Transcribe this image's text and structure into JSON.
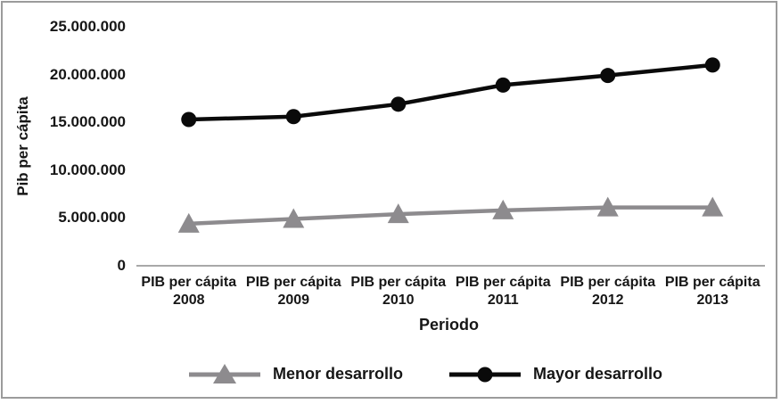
{
  "chart_data": {
    "type": "line",
    "title": "",
    "ylabel": "Pib per cápita",
    "xlabel": "Periodo",
    "ylim": [
      0,
      25000000
    ],
    "grid": false,
    "legend_position": "bottom-center",
    "x_categories": [
      {
        "line1": "PIB per cápita",
        "line2": "2008"
      },
      {
        "line1": "PIB per cápita",
        "line2": "2009"
      },
      {
        "line1": "PIB per cápita",
        "line2": "2010"
      },
      {
        "line1": "PIB per cápita",
        "line2": "2011"
      },
      {
        "line1": "PIB per cápita",
        "line2": "2012"
      },
      {
        "line1": "PIB per cápita",
        "line2": "2013"
      }
    ],
    "yticks": [
      {
        "value": 0,
        "label": "0"
      },
      {
        "value": 5000000,
        "label": "5.000.000"
      },
      {
        "value": 10000000,
        "label": "10.000.000"
      },
      {
        "value": 15000000,
        "label": "15.000.000"
      },
      {
        "value": 20000000,
        "label": "20.000.000"
      },
      {
        "value": 25000000,
        "label": "25.000.000"
      }
    ],
    "series": [
      {
        "name": "Menor desarrollo",
        "marker": "triangle",
        "color": "#8d8b8e",
        "values": [
          4400000,
          4900000,
          5400000,
          5800000,
          6100000,
          6100000
        ]
      },
      {
        "name": "Mayor desarrollo",
        "marker": "circle",
        "color": "#0a0a0a",
        "values": [
          15300000,
          15600000,
          16900000,
          18900000,
          19900000,
          21000000
        ]
      }
    ],
    "axis_line_color": "#8c8c8c",
    "frame_border_color": "#9b9b9b",
    "text_color": "#161616"
  }
}
